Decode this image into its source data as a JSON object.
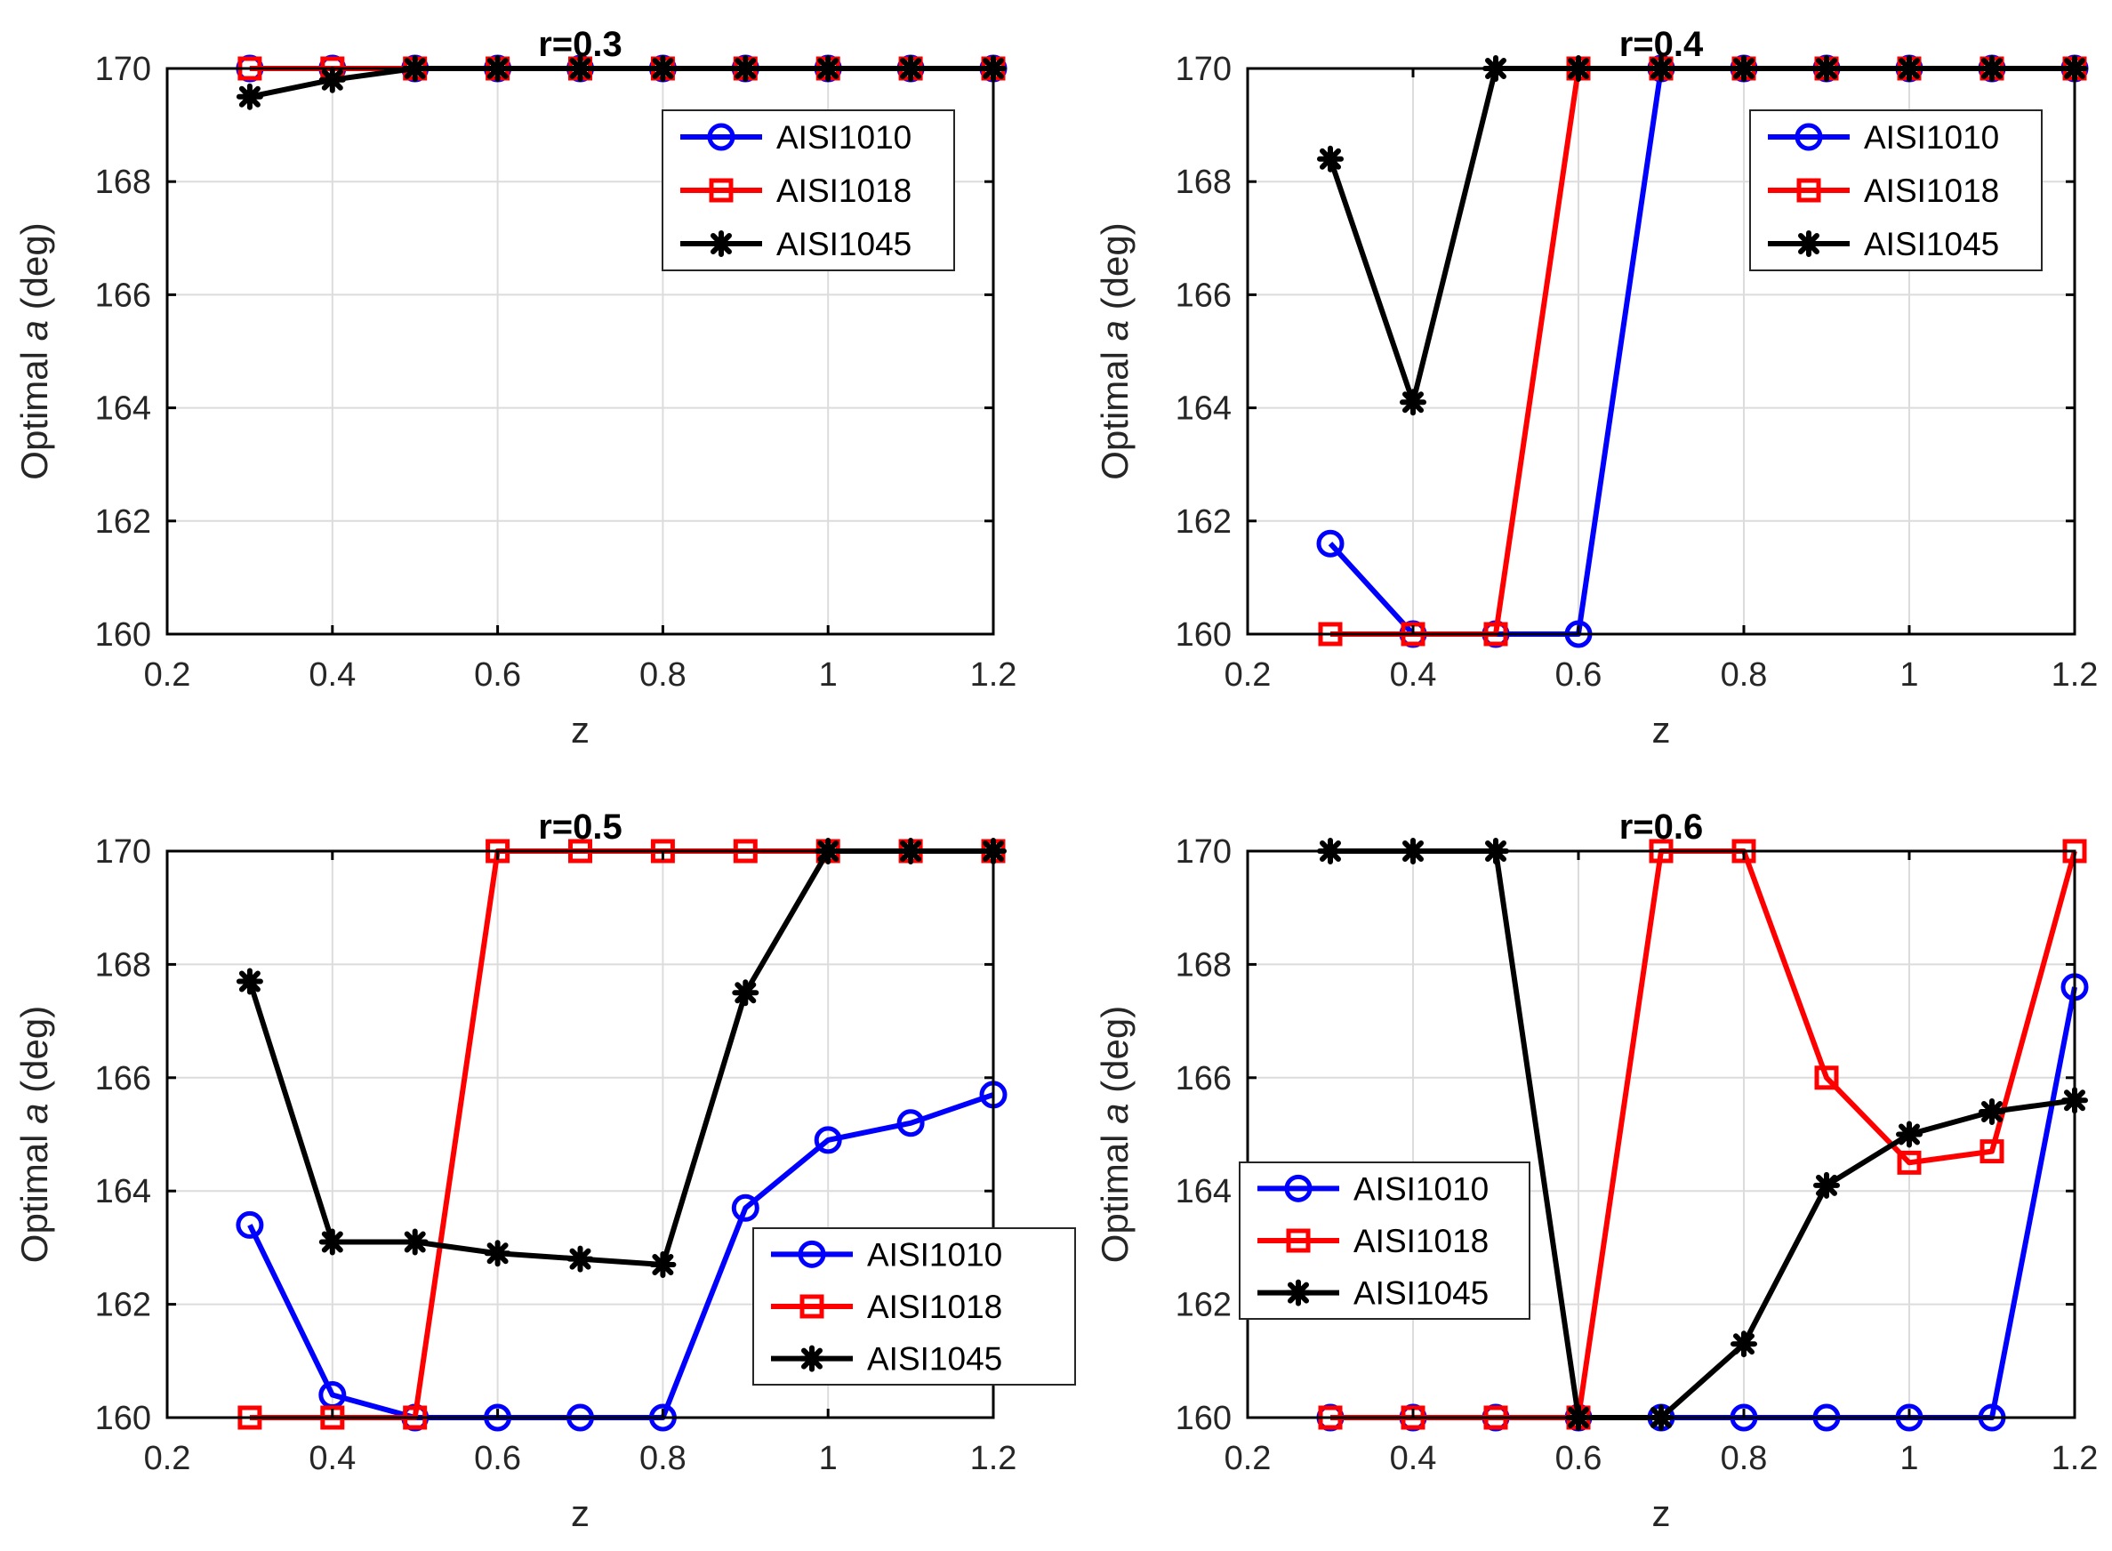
{
  "colors": {
    "AISI1010": "#0000ff",
    "AISI1018": "#ff0000",
    "AISI1045": "#000000"
  },
  "chart_data": [
    {
      "type": "line",
      "title": "r=0.3",
      "xlabel": "z",
      "ylabel_prefix": "Optimal ",
      "ylabel_var": "a",
      "ylabel_suffix": " (deg)",
      "xlim": [
        0.2,
        1.2
      ],
      "ylim": [
        160,
        170
      ],
      "xticks": [
        "0.2",
        "0.4",
        "0.6",
        "0.8",
        "1",
        "1.2"
      ],
      "yticks": [
        "160",
        "162",
        "164",
        "166",
        "168",
        "170"
      ],
      "grid": true,
      "legend": "top-right",
      "x": [
        0.3,
        0.4,
        0.5,
        0.6,
        0.7,
        0.8,
        0.9,
        1.0,
        1.1,
        1.2
      ],
      "series": [
        {
          "name": "AISI1010",
          "marker": "circle",
          "values": [
            170,
            170,
            170,
            170,
            170,
            170,
            170,
            170,
            170,
            170
          ]
        },
        {
          "name": "AISI1018",
          "marker": "square",
          "values": [
            170,
            170,
            170,
            170,
            170,
            170,
            170,
            170,
            170,
            170
          ]
        },
        {
          "name": "AISI1045",
          "marker": "star",
          "values": [
            169.5,
            169.8,
            170,
            170,
            170,
            170,
            170,
            170,
            170,
            170
          ]
        }
      ]
    },
    {
      "type": "line",
      "title": "r=0.4",
      "xlabel": "z",
      "ylabel_prefix": "Optimal ",
      "ylabel_var": "a",
      "ylabel_suffix": " (deg)",
      "xlim": [
        0.2,
        1.2
      ],
      "ylim": [
        160,
        170
      ],
      "xticks": [
        "0.2",
        "0.4",
        "0.6",
        "0.8",
        "1",
        "1.2"
      ],
      "yticks": [
        "160",
        "162",
        "164",
        "166",
        "168",
        "170"
      ],
      "grid": true,
      "legend": "top-right",
      "x": [
        0.3,
        0.4,
        0.5,
        0.6,
        0.7,
        0.8,
        0.9,
        1.0,
        1.1,
        1.2
      ],
      "series": [
        {
          "name": "AISI1010",
          "marker": "circle",
          "values": [
            161.6,
            160,
            160,
            160,
            170,
            170,
            170,
            170,
            170,
            170
          ]
        },
        {
          "name": "AISI1018",
          "marker": "square",
          "values": [
            160,
            160,
            160,
            170,
            170,
            170,
            170,
            170,
            170,
            170
          ]
        },
        {
          "name": "AISI1045",
          "marker": "star",
          "values": [
            168.4,
            164.1,
            170,
            170,
            170,
            170,
            170,
            170,
            170,
            170
          ]
        }
      ]
    },
    {
      "type": "line",
      "title": "r=0.5",
      "xlabel": "z",
      "ylabel_prefix": "Optimal ",
      "ylabel_var": "a",
      "ylabel_suffix": " (deg)",
      "xlim": [
        0.2,
        1.2
      ],
      "ylim": [
        160,
        170
      ],
      "xticks": [
        "0.2",
        "0.4",
        "0.6",
        "0.8",
        "1",
        "1.2"
      ],
      "yticks": [
        "160",
        "162",
        "164",
        "166",
        "168",
        "170"
      ],
      "grid": true,
      "legend": "bottom-right",
      "x": [
        0.3,
        0.4,
        0.5,
        0.6,
        0.7,
        0.8,
        0.9,
        1.0,
        1.1,
        1.2
      ],
      "series": [
        {
          "name": "AISI1010",
          "marker": "circle",
          "values": [
            163.4,
            160.4,
            160,
            160,
            160,
            160,
            163.7,
            164.9,
            165.2,
            165.7
          ]
        },
        {
          "name": "AISI1018",
          "marker": "square",
          "values": [
            160,
            160,
            160,
            170,
            170,
            170,
            170,
            170,
            170,
            170
          ]
        },
        {
          "name": "AISI1045",
          "marker": "star",
          "values": [
            167.7,
            163.1,
            163.1,
            162.9,
            162.8,
            162.7,
            167.5,
            170,
            170,
            170
          ]
        }
      ]
    },
    {
      "type": "line",
      "title": "r=0.6",
      "xlabel": "z",
      "ylabel_prefix": "Optimal ",
      "ylabel_var": "a",
      "ylabel_suffix": " (deg)",
      "xlim": [
        0.2,
        1.2
      ],
      "ylim": [
        160,
        170
      ],
      "xticks": [
        "0.2",
        "0.4",
        "0.6",
        "0.8",
        "1",
        "1.2"
      ],
      "yticks": [
        "160",
        "162",
        "164",
        "166",
        "168",
        "170"
      ],
      "grid": true,
      "legend": "bottom-left",
      "x": [
        0.3,
        0.4,
        0.5,
        0.6,
        0.7,
        0.8,
        0.9,
        1.0,
        1.1,
        1.2
      ],
      "series": [
        {
          "name": "AISI1010",
          "marker": "circle",
          "values": [
            160,
            160,
            160,
            160,
            160,
            160,
            160,
            160,
            160,
            167.6
          ]
        },
        {
          "name": "AISI1018",
          "marker": "square",
          "values": [
            160,
            160,
            160,
            160,
            170,
            170,
            166,
            164.5,
            164.7,
            170
          ]
        },
        {
          "name": "AISI1045",
          "marker": "star",
          "values": [
            170,
            170,
            170,
            160,
            160,
            161.3,
            164.1,
            165,
            165.4,
            165.6
          ]
        }
      ]
    }
  ]
}
